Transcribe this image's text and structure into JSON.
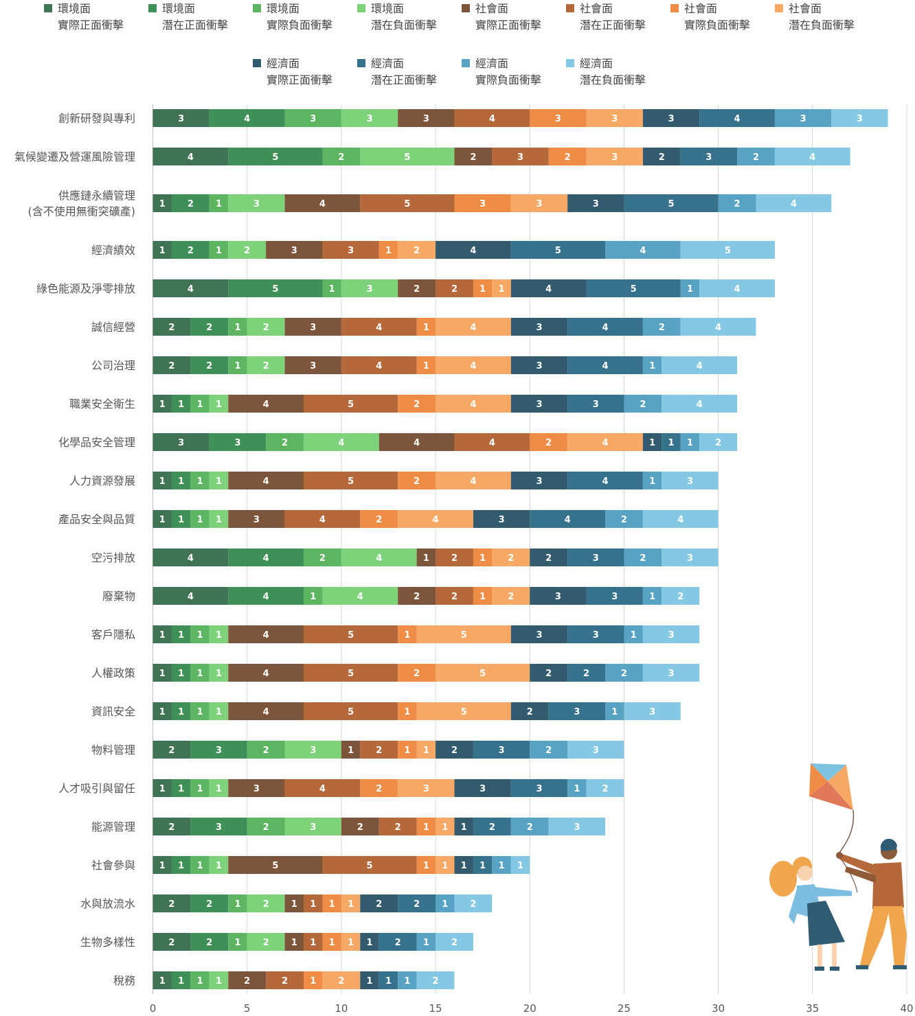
{
  "chart_data": {
    "type": "bar",
    "orientation": "horizontal",
    "stacked": true,
    "grid": true,
    "legend_position": "top",
    "xlim": [
      0,
      40
    ],
    "x_ticks": [
      0,
      5,
      10,
      15,
      20,
      25,
      30,
      35,
      40
    ],
    "categories": [
      [
        "創新研發與專利"
      ],
      [
        "氣候變遷及營運風險管理"
      ],
      [
        "供應鏈永續管理",
        "(含不使用無衝突礦產)"
      ],
      [
        "經濟績效"
      ],
      [
        "綠色能源及淨零排放"
      ],
      [
        "誠信經營"
      ],
      [
        "公司治理"
      ],
      [
        "職業安全衛生"
      ],
      [
        "化學品安全管理"
      ],
      [
        "人力資源發展"
      ],
      [
        "產品安全與品質"
      ],
      [
        "空污排放"
      ],
      [
        "廢棄物"
      ],
      [
        "客戶隱私"
      ],
      [
        "人權政策"
      ],
      [
        "資訊安全"
      ],
      [
        "物料管理"
      ],
      [
        "人才吸引與留任"
      ],
      [
        "能源管理"
      ],
      [
        "社會參與"
      ],
      [
        "水與放流水"
      ],
      [
        "生物多樣性"
      ],
      [
        "稅務"
      ]
    ],
    "series": [
      {
        "name": [
          "環境面",
          "實際正面衝擊"
        ],
        "color": "#3f7353",
        "values": [
          3,
          4,
          1,
          1,
          4,
          2,
          2,
          1,
          3,
          1,
          1,
          4,
          4,
          1,
          1,
          1,
          2,
          1,
          2,
          1,
          2,
          2,
          1
        ]
      },
      {
        "name": [
          "環境面",
          "潛在正面衝擊"
        ],
        "color": "#3f8f58",
        "values": [
          4,
          5,
          2,
          2,
          5,
          2,
          2,
          1,
          3,
          1,
          1,
          4,
          4,
          1,
          1,
          1,
          3,
          1,
          3,
          1,
          2,
          2,
          1
        ]
      },
      {
        "name": [
          "環境面",
          "實際負面衝擊"
        ],
        "color": "#5db561",
        "values": [
          3,
          2,
          1,
          1,
          1,
          1,
          1,
          1,
          2,
          1,
          1,
          2,
          1,
          1,
          1,
          1,
          2,
          1,
          2,
          1,
          1,
          1,
          1
        ]
      },
      {
        "name": [
          "環境面",
          "潛在負面衝擊"
        ],
        "color": "#7ed27a",
        "values": [
          3,
          5,
          3,
          2,
          3,
          2,
          2,
          1,
          4,
          1,
          1,
          4,
          4,
          1,
          1,
          1,
          3,
          1,
          3,
          1,
          2,
          2,
          1
        ]
      },
      {
        "name": [
          "社會面",
          "實際正面衝擊"
        ],
        "color": "#7d553b",
        "values": [
          3,
          2,
          4,
          3,
          2,
          3,
          3,
          4,
          4,
          4,
          3,
          1,
          2,
          4,
          4,
          4,
          1,
          3,
          2,
          5,
          1,
          1,
          2
        ]
      },
      {
        "name": [
          "社會面",
          "潛在正面衝擊"
        ],
        "color": "#b5693a",
        "values": [
          4,
          3,
          5,
          3,
          2,
          4,
          4,
          5,
          4,
          5,
          4,
          2,
          2,
          5,
          5,
          5,
          2,
          4,
          2,
          5,
          1,
          1,
          2
        ]
      },
      {
        "name": [
          "社會面",
          "實際負面衝擊"
        ],
        "color": "#ef8c45",
        "values": [
          3,
          2,
          3,
          1,
          1,
          1,
          1,
          2,
          2,
          2,
          2,
          1,
          1,
          1,
          2,
          1,
          1,
          2,
          1,
          1,
          1,
          1,
          1
        ]
      },
      {
        "name": [
          "社會面",
          "潛在負面衝擊"
        ],
        "color": "#f6a965",
        "values": [
          3,
          3,
          3,
          2,
          1,
          4,
          4,
          4,
          4,
          4,
          4,
          2,
          2,
          5,
          5,
          5,
          1,
          3,
          1,
          1,
          1,
          1,
          2
        ]
      },
      {
        "name": [
          "經濟面",
          "實際正面衝擊"
        ],
        "color": "#335b6e",
        "values": [
          3,
          2,
          3,
          4,
          4,
          3,
          3,
          3,
          1,
          3,
          3,
          2,
          3,
          3,
          2,
          2,
          2,
          3,
          1,
          1,
          2,
          1,
          1
        ]
      },
      {
        "name": [
          "經濟面",
          "潛在正面衝擊"
        ],
        "color": "#37728d",
        "values": [
          4,
          3,
          5,
          5,
          5,
          4,
          4,
          3,
          1,
          4,
          4,
          3,
          3,
          3,
          2,
          3,
          3,
          3,
          2,
          1,
          2,
          2,
          1
        ]
      },
      {
        "name": [
          "經濟面",
          "實際負面衝擊"
        ],
        "color": "#58a3c3",
        "values": [
          3,
          2,
          2,
          4,
          1,
          2,
          1,
          2,
          1,
          1,
          2,
          2,
          1,
          1,
          2,
          1,
          2,
          1,
          2,
          1,
          1,
          1,
          1
        ]
      },
      {
        "name": [
          "經濟面",
          "潛在負面衝擊"
        ],
        "color": "#84c8e3",
        "values": [
          3,
          4,
          4,
          5,
          4,
          4,
          4,
          4,
          2,
          3,
          4,
          3,
          2,
          3,
          3,
          3,
          3,
          2,
          3,
          1,
          2,
          2,
          2
        ]
      }
    ]
  },
  "decoration": {
    "name": "kite-flying-illustration",
    "colors": {
      "kite_top": "#7cc3df",
      "kite_right": "#f6a965",
      "kite_left": "#ef8c45",
      "kite_bottom": "#e0795a",
      "girl_hair": "#f0a64d",
      "girl_shirt": "#7cbde0",
      "girl_skirt": "#2f5c72",
      "skin": "#f8d3b0",
      "boy_shirt": "#b5693a",
      "boy_pants": "#f0a64d",
      "boy_hair": "#2f5c72",
      "boy_skin": "#8b5a3a"
    }
  }
}
